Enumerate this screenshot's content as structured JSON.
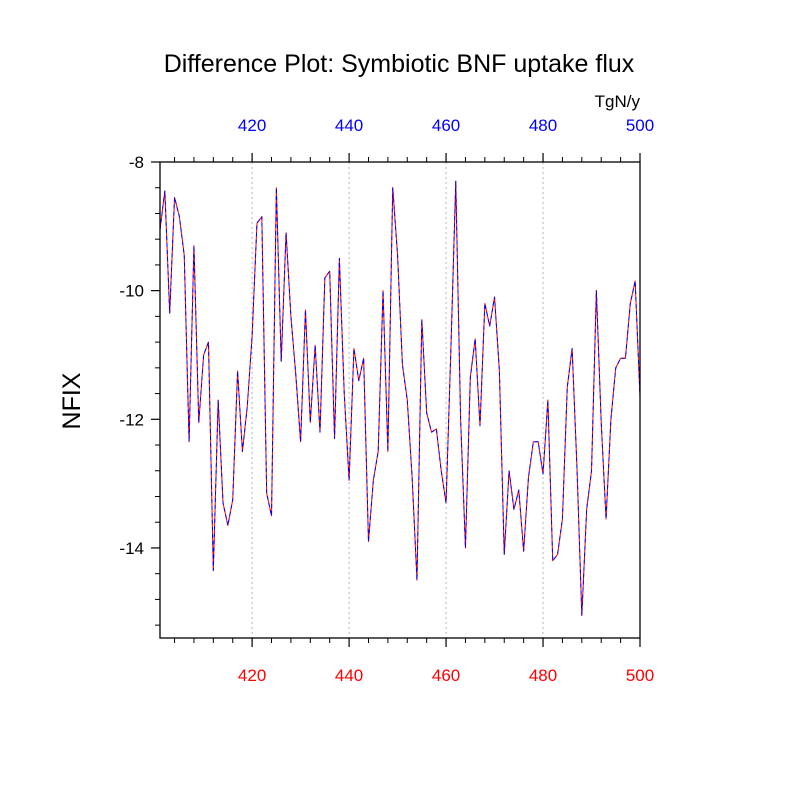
{
  "chart_data": {
    "type": "line",
    "title": "Difference Plot: Symbiotic BNF uptake flux",
    "units": "TgN/y",
    "ylabel": "NFIX",
    "xlim": [
      401,
      500
    ],
    "ylim": [
      -15.4,
      -8.0
    ],
    "x_ticks": [
      420,
      440,
      460,
      480,
      500
    ],
    "y_ticks": [
      -8,
      -10,
      -12,
      -14
    ],
    "x_gridlines": [
      420,
      440,
      460,
      480
    ],
    "top_axis_color": "#0000ff",
    "bottom_axis_color": "#ff0000",
    "series": [
      {
        "color": "#ff0000",
        "style": "solid",
        "x": [
          401,
          402,
          403,
          404,
          405,
          406,
          407,
          408,
          409,
          410,
          411,
          412,
          413,
          414,
          415,
          416,
          417,
          418,
          419,
          420,
          421,
          422,
          423,
          424,
          425,
          426,
          427,
          428,
          429,
          430,
          431,
          432,
          433,
          434,
          435,
          436,
          437,
          438,
          439,
          440,
          441,
          442,
          443,
          444,
          445,
          446,
          447,
          448,
          449,
          450,
          451,
          452,
          453,
          454,
          455,
          456,
          457,
          458,
          459,
          460,
          461,
          462,
          463,
          464,
          465,
          466,
          467,
          468,
          469,
          470,
          471,
          472,
          473,
          474,
          475,
          476,
          477,
          478,
          479,
          480,
          481,
          482,
          483,
          484,
          485,
          486,
          487,
          488,
          489,
          490,
          491,
          492,
          493,
          494,
          495,
          496,
          497,
          498,
          499,
          500
        ],
        "values": [
          -9.05,
          -8.45,
          -10.35,
          -8.55,
          -8.85,
          -9.45,
          -12.35,
          -9.3,
          -12.05,
          -11.0,
          -10.8,
          -14.35,
          -11.7,
          -13.3,
          -13.65,
          -13.25,
          -11.25,
          -12.5,
          -11.8,
          -10.7,
          -8.95,
          -8.85,
          -13.15,
          -13.5,
          -8.4,
          -11.1,
          -9.1,
          -10.4,
          -11.3,
          -12.35,
          -10.3,
          -12.05,
          -10.85,
          -12.2,
          -9.8,
          -9.7,
          -12.3,
          -9.5,
          -11.6,
          -12.95,
          -10.9,
          -11.4,
          -11.05,
          -13.9,
          -12.95,
          -12.5,
          -10.0,
          -12.5,
          -8.4,
          -9.45,
          -11.15,
          -11.7,
          -12.9,
          -14.5,
          -10.45,
          -11.9,
          -12.2,
          -12.15,
          -12.8,
          -13.3,
          -10.9,
          -8.3,
          -12.0,
          -14.0,
          -11.35,
          -10.75,
          -12.1,
          -10.2,
          -10.55,
          -10.1,
          -11.25,
          -14.1,
          -12.8,
          -13.4,
          -13.1,
          -14.05,
          -12.9,
          -12.35,
          -12.35,
          -12.85,
          -11.7,
          -14.2,
          -14.1,
          -13.55,
          -11.5,
          -10.9,
          -12.75,
          -15.05,
          -13.4,
          -12.8,
          -10.0,
          -12.05,
          -13.55,
          -12.0,
          -11.2,
          -11.05,
          -11.05,
          -10.2,
          -9.85,
          -11.65
        ]
      },
      {
        "color": "#0000ff",
        "style": "dashed",
        "x": [
          401,
          402,
          403,
          404,
          405,
          406,
          407,
          408,
          409,
          410,
          411,
          412,
          413,
          414,
          415,
          416,
          417,
          418,
          419,
          420,
          421,
          422,
          423,
          424,
          425,
          426,
          427,
          428,
          429,
          430,
          431,
          432,
          433,
          434,
          435,
          436,
          437,
          438,
          439,
          440,
          441,
          442,
          443,
          444,
          445,
          446,
          447,
          448,
          449,
          450,
          451,
          452,
          453,
          454,
          455,
          456,
          457,
          458,
          459,
          460,
          461,
          462,
          463,
          464,
          465,
          466,
          467,
          468,
          469,
          470,
          471,
          472,
          473,
          474,
          475,
          476,
          477,
          478,
          479,
          480,
          481,
          482,
          483,
          484,
          485,
          486,
          487,
          488,
          489,
          490,
          491,
          492,
          493,
          494,
          495,
          496,
          497,
          498,
          499,
          500
        ],
        "values": [
          -9.05,
          -8.45,
          -10.35,
          -8.55,
          -8.85,
          -9.45,
          -12.35,
          -9.3,
          -12.05,
          -11.0,
          -10.8,
          -14.35,
          -11.7,
          -13.3,
          -13.65,
          -13.25,
          -11.25,
          -12.5,
          -11.8,
          -10.7,
          -8.95,
          -8.85,
          -13.15,
          -13.5,
          -8.4,
          -11.1,
          -9.1,
          -10.4,
          -11.3,
          -12.35,
          -10.3,
          -12.05,
          -10.85,
          -12.2,
          -9.8,
          -9.7,
          -12.3,
          -9.5,
          -11.6,
          -12.95,
          -10.9,
          -11.4,
          -11.05,
          -13.9,
          -12.95,
          -12.5,
          -10.0,
          -12.5,
          -8.4,
          -9.45,
          -11.15,
          -11.7,
          -12.9,
          -14.5,
          -10.45,
          -11.9,
          -12.2,
          -12.15,
          -12.8,
          -13.3,
          -10.9,
          -8.3,
          -12.0,
          -14.0,
          -11.35,
          -10.75,
          -12.1,
          -10.2,
          -10.55,
          -10.1,
          -11.25,
          -14.1,
          -12.8,
          -13.4,
          -13.1,
          -14.05,
          -12.9,
          -12.35,
          -12.35,
          -12.85,
          -11.7,
          -14.2,
          -14.1,
          -13.55,
          -11.5,
          -10.9,
          -12.75,
          -15.05,
          -13.4,
          -12.8,
          -10.0,
          -12.05,
          -13.55,
          -12.0,
          -11.2,
          -11.05,
          -11.05,
          -10.2,
          -9.85,
          -11.65
        ]
      }
    ]
  }
}
